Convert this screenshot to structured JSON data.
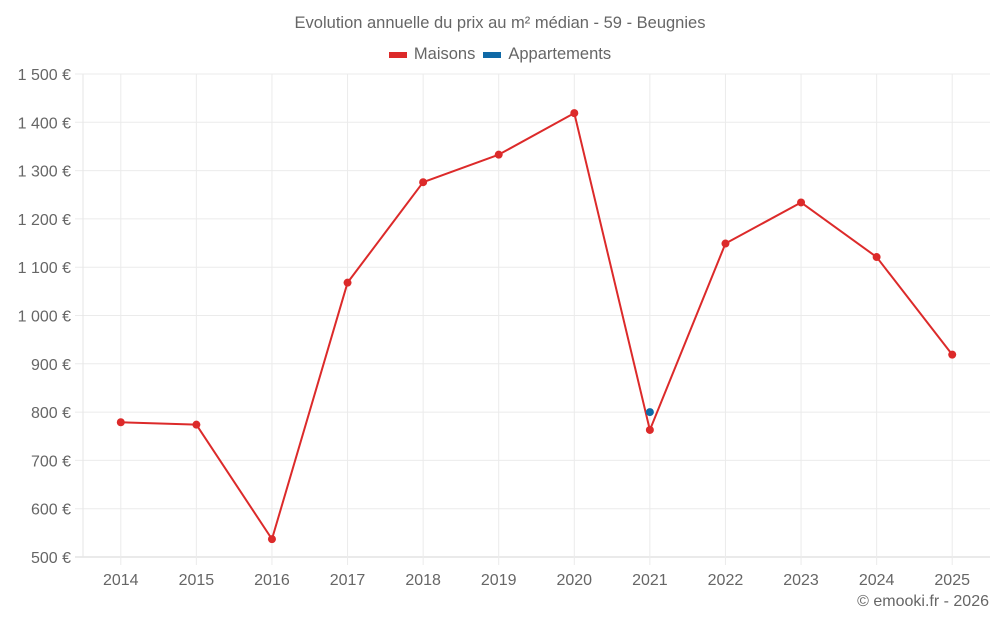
{
  "chart_data": {
    "type": "line",
    "title": "Evolution annuelle du prix au m² médian - 59 - Beugnies",
    "xlabel": "",
    "ylabel": "",
    "categories": [
      "2014",
      "2015",
      "2016",
      "2017",
      "2018",
      "2019",
      "2020",
      "2021",
      "2022",
      "2023",
      "2024",
      "2025"
    ],
    "series": [
      {
        "name": "Maisons",
        "color": "#dc2a2a",
        "values": [
          779,
          774,
          537,
          1068,
          1276,
          1333,
          1419,
          763,
          1149,
          1234,
          1121,
          919
        ]
      },
      {
        "name": "Appartements",
        "color": "#0f69a6",
        "values": [
          null,
          null,
          null,
          null,
          null,
          null,
          null,
          800,
          null,
          null,
          null,
          null
        ]
      }
    ],
    "ylim": [
      500,
      1500
    ],
    "yticks": [
      500,
      600,
      700,
      800,
      900,
      1000,
      1100,
      1200,
      1300,
      1400,
      1500
    ],
    "ytick_labels": [
      "500 €",
      "600 €",
      "700 €",
      "800 €",
      "900 €",
      "1 000 €",
      "1 100 €",
      "1 200 €",
      "1 300 €",
      "1 400 €",
      "1 500 €"
    ],
    "grid": true,
    "legend_position": "top"
  },
  "footer": {
    "credit": "© emooki.fr - 2026"
  }
}
